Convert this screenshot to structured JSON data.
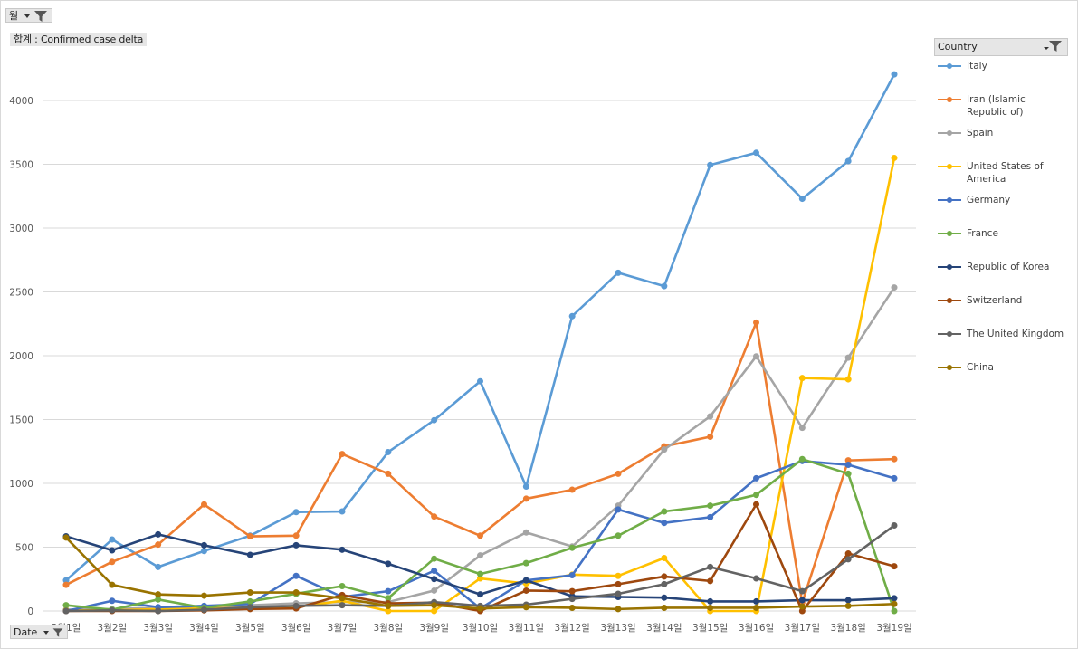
{
  "filters": {
    "page_field": "월",
    "value_field": "합계 : Confirmed case delta",
    "axis_field": "Date",
    "legend_field": "Country"
  },
  "colors": {
    "gridline": "#d9d9d9",
    "axis_text": "#595959",
    "filter_button": "#e6e6e6"
  },
  "chart_data": {
    "type": "line",
    "title": "",
    "xlabel": "",
    "ylabel": "",
    "ylim": [
      0,
      4200
    ],
    "yticks": [
      0,
      500,
      1000,
      1500,
      2000,
      2500,
      3000,
      3500,
      4000
    ],
    "grid": true,
    "legend_position": "right",
    "categories": [
      "3월1일",
      "3월2일",
      "3월3일",
      "3월4일",
      "3월5일",
      "3월6일",
      "3월7일",
      "3월8일",
      "3월9일",
      "3월10일",
      "3월11일",
      "3월12일",
      "3월13일",
      "3월14일",
      "3월15일",
      "3월16일",
      "3월17일",
      "3월18일",
      "3월19일"
    ],
    "series": [
      {
        "name": "Italy",
        "color": "#5b9bd5",
        "values": [
          240,
          560,
          345,
          470,
          590,
          775,
          780,
          1245,
          1495,
          1800,
          975,
          2310,
          2650,
          2545,
          3495,
          3590,
          3230,
          3525,
          4205
        ]
      },
      {
        "name": "Iran (Islamic Republic of)",
        "color": "#ed7d31",
        "values": [
          205,
          385,
          520,
          835,
          585,
          590,
          1230,
          1075,
          740,
          590,
          880,
          950,
          1075,
          1290,
          1365,
          2260,
          65,
          1180,
          1190
        ]
      },
      {
        "name": "Spain",
        "color": "#a5a5a5",
        "values": [
          10,
          15,
          25,
          30,
          45,
          60,
          70,
          70,
          160,
          435,
          615,
          505,
          825,
          1265,
          1525,
          1995,
          1435,
          1985,
          2535
        ]
      },
      {
        "name": "United States of America",
        "color": "#ffc000",
        "values": [
          5,
          5,
          15,
          20,
          25,
          30,
          80,
          0,
          0,
          255,
          215,
          285,
          275,
          415,
          0,
          0,
          1825,
          1815,
          3550
        ]
      },
      {
        "name": "Germany",
        "color": "#4472c4",
        "values": [
          0,
          80,
          30,
          40,
          55,
          275,
          110,
          155,
          315,
          20,
          240,
          280,
          795,
          690,
          735,
          1040,
          1175,
          1145,
          1040
        ]
      },
      {
        "name": "France",
        "color": "#70ad47",
        "values": [
          45,
          10,
          90,
          25,
          75,
          135,
          195,
          100,
          410,
          290,
          375,
          495,
          590,
          780,
          825,
          910,
          1190,
          1075,
          0
        ]
      },
      {
        "name": "Republic of Korea",
        "color": "#264478",
        "values": [
          585,
          475,
          600,
          515,
          440,
          515,
          480,
          370,
          250,
          130,
          240,
          115,
          110,
          105,
          75,
          75,
          85,
          85,
          100
        ]
      },
      {
        "name": "Switzerland",
        "color": "#9e480e",
        "values": [
          0,
          0,
          0,
          5,
          15,
          20,
          125,
          60,
          65,
          0,
          160,
          155,
          210,
          270,
          235,
          835,
          0,
          450,
          350
        ]
      },
      {
        "name": "The United Kingdom",
        "color": "#636363",
        "values": [
          0,
          5,
          0,
          10,
          30,
          40,
          45,
          40,
          70,
          40,
          50,
          95,
          135,
          210,
          345,
          255,
          155,
          405,
          670
        ]
      },
      {
        "name": "China",
        "color": "#997300",
        "values": [
          575,
          205,
          130,
          120,
          145,
          145,
          100,
          40,
          45,
          20,
          30,
          25,
          15,
          25,
          25,
          25,
          35,
          40,
          55
        ]
      }
    ]
  }
}
